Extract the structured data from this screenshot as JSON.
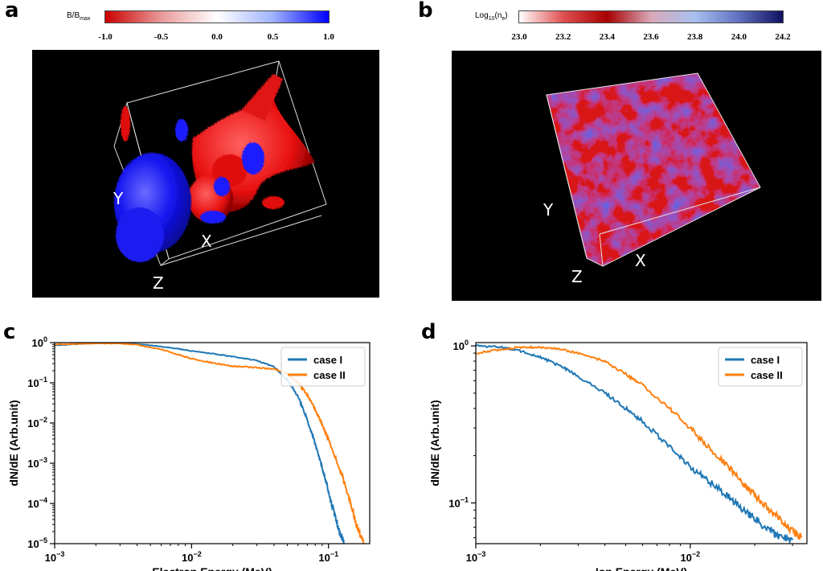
{
  "panels": {
    "a": {
      "label": "a",
      "colorbar": {
        "title_main": "B/B",
        "title_sub": "max",
        "ticks": [
          "-1.0",
          "-0.5",
          "0.0",
          "0.5",
          "1.0"
        ],
        "colors": [
          "#cc0000",
          "#e89a9a",
          "#ffffff",
          "#9fb4ff",
          "#0000ff"
        ]
      },
      "axes_letters": {
        "x": "X",
        "y": "Y",
        "z": "Z"
      },
      "colors": {
        "positive": "#1a1aff",
        "negative": "#ff1a1a",
        "background": "#000000"
      }
    },
    "b": {
      "label": "b",
      "colorbar": {
        "title_main": "Log",
        "title_sub1": "10",
        "title_mid": "(n",
        "title_sub2": "e",
        "title_end": ")",
        "ticks": [
          "23.0",
          "23.2",
          "23.4",
          "23.6",
          "23.8",
          "24.0",
          "24.2"
        ],
        "colors": [
          "#ffffff",
          "#e05050",
          "#a80000",
          "#d8a8b8",
          "#a8c0f0",
          "#6070c0",
          "#101060"
        ]
      },
      "axes_letters": {
        "x": "X",
        "y": "Y",
        "z": "Z"
      },
      "colors": {
        "high": "#2020c0",
        "low": "#e01010",
        "background": "#000000"
      }
    },
    "c": {
      "label": "c"
    },
    "d": {
      "label": "d"
    }
  },
  "chart_data": [
    {
      "id": "c",
      "type": "line",
      "xlabel": "Electron Energy (MeV)",
      "ylabel": "dN/dE (Arb.unit)",
      "xscale": "log",
      "yscale": "log",
      "xlim": [
        0.001,
        0.2
      ],
      "ylim": [
        1e-05,
        1
      ],
      "xticks": [
        {
          "value": 0.001,
          "mant": "10",
          "exp": "−3"
        },
        {
          "value": 0.01,
          "mant": "10",
          "exp": "−2"
        },
        {
          "value": 0.1,
          "mant": "10",
          "exp": "−1"
        }
      ],
      "yticks": [
        {
          "value": 1,
          "mant": "10",
          "exp": "0"
        },
        {
          "value": 0.1,
          "mant": "10",
          "exp": "−1"
        },
        {
          "value": 0.01,
          "mant": "10",
          "exp": "−2"
        },
        {
          "value": 0.001,
          "mant": "10",
          "exp": "−3"
        },
        {
          "value": 0.0001,
          "mant": "10",
          "exp": "−4"
        },
        {
          "value": 1e-05,
          "mant": "10",
          "exp": "−5"
        }
      ],
      "legend_position": "upper-right",
      "series": [
        {
          "name": "case I",
          "color": "#1f77b4",
          "x": [
            0.001,
            0.0015,
            0.002,
            0.003,
            0.004,
            0.006,
            0.008,
            0.01,
            0.015,
            0.02,
            0.03,
            0.04,
            0.05,
            0.06,
            0.07,
            0.08,
            0.09,
            0.1,
            0.11,
            0.12,
            0.13
          ],
          "y": [
            0.85,
            0.92,
            0.97,
            0.98,
            0.92,
            0.8,
            0.7,
            0.62,
            0.52,
            0.45,
            0.36,
            0.25,
            0.12,
            0.045,
            0.012,
            0.003,
            0.0008,
            0.0002,
            6e-05,
            2e-05,
            1e-05
          ]
        },
        {
          "name": "case II",
          "color": "#ff7f0e",
          "x": [
            0.001,
            0.0015,
            0.002,
            0.003,
            0.004,
            0.006,
            0.008,
            0.01,
            0.015,
            0.02,
            0.03,
            0.04,
            0.05,
            0.06,
            0.07,
            0.08,
            0.09,
            0.1,
            0.12,
            0.14,
            0.16,
            0.18
          ],
          "y": [
            0.9,
            0.93,
            0.96,
            0.95,
            0.88,
            0.68,
            0.5,
            0.4,
            0.3,
            0.26,
            0.24,
            0.22,
            0.17,
            0.1,
            0.05,
            0.022,
            0.009,
            0.004,
            0.0008,
            0.00015,
            3e-05,
            1e-05
          ]
        }
      ]
    },
    {
      "id": "d",
      "type": "line",
      "xlabel": "Ion Energy (MeV)",
      "ylabel": "dN/dE (Arb.unit)",
      "xscale": "log",
      "yscale": "log",
      "xlim": [
        0.001,
        0.035
      ],
      "ylim": [
        0.055,
        1.05
      ],
      "xticks": [
        {
          "value": 0.001,
          "mant": "10",
          "exp": "−3"
        },
        {
          "value": 0.01,
          "mant": "10",
          "exp": "−2"
        }
      ],
      "yticks": [
        {
          "value": 1,
          "mant": "10",
          "exp": "0"
        },
        {
          "value": 0.1,
          "mant": "10",
          "exp": "−1"
        }
      ],
      "legend_position": "upper-right",
      "series": [
        {
          "name": "case I",
          "color": "#1f77b4",
          "x": [
            0.001,
            0.0013,
            0.0016,
            0.002,
            0.0025,
            0.003,
            0.004,
            0.005,
            0.006,
            0.008,
            0.01,
            0.012,
            0.015,
            0.018,
            0.021,
            0.025,
            0.03
          ],
          "y": [
            1.0,
            0.98,
            0.93,
            0.85,
            0.74,
            0.64,
            0.5,
            0.4,
            0.33,
            0.23,
            0.17,
            0.14,
            0.11,
            0.088,
            0.075,
            0.063,
            0.058
          ]
        },
        {
          "name": "case II",
          "color": "#ff7f0e",
          "x": [
            0.001,
            0.0013,
            0.0016,
            0.002,
            0.0025,
            0.003,
            0.004,
            0.005,
            0.006,
            0.008,
            0.01,
            0.012,
            0.015,
            0.018,
            0.021,
            0.025,
            0.03,
            0.033
          ],
          "y": [
            0.9,
            0.95,
            0.98,
            0.98,
            0.95,
            0.9,
            0.8,
            0.66,
            0.56,
            0.4,
            0.3,
            0.23,
            0.17,
            0.13,
            0.105,
            0.083,
            0.066,
            0.06
          ]
        }
      ]
    }
  ]
}
